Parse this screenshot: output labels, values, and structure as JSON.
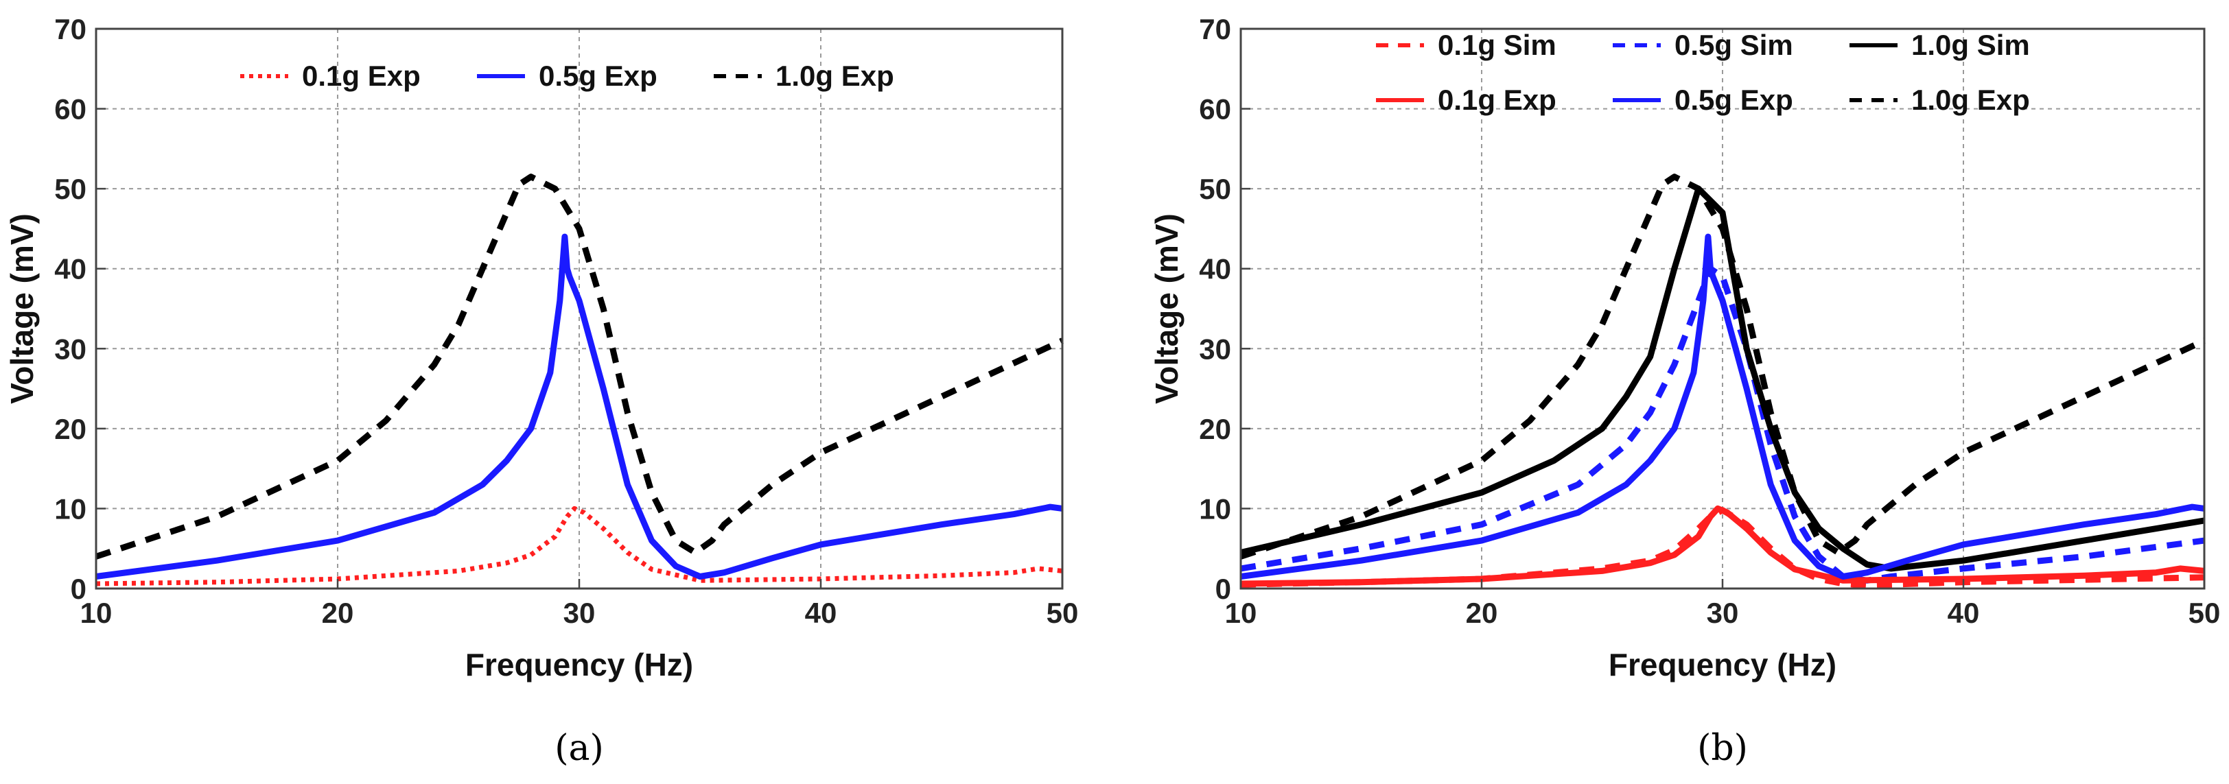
{
  "chart_data": [
    {
      "type": "line",
      "caption": "(a)",
      "xlabel": "Frequency (Hz)",
      "ylabel": "Voltage (mV)",
      "xlim": [
        10,
        50
      ],
      "ylim": [
        0,
        70
      ],
      "xticks": [
        "10",
        "20",
        "30",
        "40",
        "50"
      ],
      "yticks": [
        "0",
        "10",
        "20",
        "30",
        "40",
        "50",
        "60",
        "70"
      ],
      "grid": true,
      "legend_position": "top",
      "series": [
        {
          "name": "0.1g Exp",
          "color": "#ff2020",
          "style": "dotted",
          "x": [
            10,
            15,
            20,
            25,
            27,
            28,
            29,
            29.5,
            29.8,
            30.2,
            31,
            32,
            33,
            35,
            40,
            45,
            48,
            49,
            50
          ],
          "y": [
            0.6,
            0.8,
            1.2,
            2.2,
            3.2,
            4.2,
            6.5,
            9,
            10,
            9.5,
            7.5,
            4.5,
            2.4,
            1.0,
            1.2,
            1.6,
            2.0,
            2.5,
            2.2
          ]
        },
        {
          "name": "0.5g Exp",
          "color": "#1a1aff",
          "style": "solid",
          "x": [
            10,
            15,
            20,
            24,
            26,
            27,
            28,
            28.8,
            29.2,
            29.4,
            29.5,
            29.6,
            30,
            31,
            32,
            33,
            34,
            35,
            36,
            38,
            40,
            45,
            48,
            49.5,
            50
          ],
          "y": [
            1.5,
            3.5,
            6,
            9.5,
            13,
            16,
            20,
            27,
            36,
            44,
            40,
            39,
            36,
            25,
            13,
            6,
            2.8,
            1.5,
            2,
            3.8,
            5.5,
            8,
            9.3,
            10.2,
            10
          ]
        },
        {
          "name": "1.0g Exp",
          "color": "#000000",
          "style": "dashed",
          "x": [
            10,
            15,
            20,
            22,
            24,
            25,
            26,
            27,
            27.5,
            28,
            29,
            30,
            31,
            32,
            33,
            34,
            34.8,
            35.5,
            36,
            38,
            40,
            45,
            50
          ],
          "y": [
            4,
            9,
            16,
            21,
            28,
            33,
            40,
            47,
            50.5,
            51.5,
            50,
            45,
            35,
            22,
            12,
            6,
            4.5,
            6,
            8,
            13,
            17,
            24,
            31
          ]
        }
      ]
    },
    {
      "type": "line",
      "caption": "(b)",
      "xlabel": "Frequency (Hz)",
      "ylabel": "Voltage (mV)",
      "xlim": [
        10,
        50
      ],
      "ylim": [
        0,
        70
      ],
      "xticks": [
        "10",
        "20",
        "30",
        "40",
        "50"
      ],
      "yticks": [
        "0",
        "10",
        "20",
        "30",
        "40",
        "50",
        "60",
        "70"
      ],
      "grid": true,
      "legend_position": "top",
      "series": [
        {
          "name": "0.1g Sim",
          "color": "#ff2020",
          "style": "dashed",
          "x": [
            10,
            15,
            20,
            25,
            27,
            28,
            29,
            29.5,
            30,
            31,
            32,
            33,
            34,
            35,
            36,
            38,
            40,
            45,
            50
          ],
          "y": [
            0.5,
            0.8,
            1.2,
            2.5,
            3.5,
            4.8,
            7.5,
            9,
            9.8,
            8,
            5,
            2.5,
            1.2,
            0.6,
            0.4,
            0.6,
            0.8,
            1.1,
            1.4
          ]
        },
        {
          "name": "0.5g Sim",
          "color": "#1a1aff",
          "style": "dashed",
          "x": [
            10,
            15,
            20,
            24,
            26,
            27,
            28,
            29,
            29.5,
            30,
            31,
            32,
            33,
            34,
            35,
            36,
            37,
            40,
            45,
            50
          ],
          "y": [
            2.5,
            5,
            8,
            13,
            18,
            22,
            28,
            36,
            40,
            39,
            30,
            18,
            9,
            4,
            1.5,
            1,
            1.5,
            2.5,
            4,
            6
          ]
        },
        {
          "name": "1.0g Sim",
          "color": "#000000",
          "style": "solid",
          "x": [
            10,
            15,
            20,
            23,
            25,
            26,
            27,
            28,
            29,
            30,
            31,
            32,
            33,
            34,
            35,
            36,
            37,
            40,
            45,
            50
          ],
          "y": [
            4.5,
            8,
            12,
            16,
            20,
            24,
            29,
            40,
            50,
            47,
            30,
            20,
            12,
            7.5,
            5,
            3,
            2.5,
            3.5,
            6,
            8.5
          ]
        },
        {
          "name": "0.1g Exp",
          "color": "#ff2020",
          "style": "solid",
          "x": [
            10,
            15,
            20,
            25,
            27,
            28,
            29,
            29.5,
            29.8,
            30.2,
            31,
            32,
            33,
            35,
            40,
            45,
            48,
            49,
            50
          ],
          "y": [
            0.6,
            0.8,
            1.2,
            2.2,
            3.2,
            4.2,
            6.5,
            9,
            10,
            9.5,
            7.5,
            4.5,
            2.4,
            1.0,
            1.2,
            1.6,
            2.0,
            2.5,
            2.2
          ]
        },
        {
          "name": "0.5g Exp",
          "color": "#1a1aff",
          "style": "solid",
          "x": [
            10,
            15,
            20,
            24,
            26,
            27,
            28,
            28.8,
            29.2,
            29.4,
            29.5,
            29.6,
            30,
            31,
            32,
            33,
            34,
            35,
            36,
            38,
            40,
            45,
            48,
            49.5,
            50
          ],
          "y": [
            1.5,
            3.5,
            6,
            9.5,
            13,
            16,
            20,
            27,
            36,
            44,
            40,
            39,
            36,
            25,
            13,
            6,
            2.8,
            1.5,
            2,
            3.8,
            5.5,
            8,
            9.3,
            10.2,
            10
          ]
        },
        {
          "name": "1.0g Exp",
          "color": "#000000",
          "style": "dashed",
          "x": [
            10,
            15,
            20,
            22,
            24,
            25,
            26,
            27,
            27.5,
            28,
            29,
            30,
            31,
            32,
            33,
            34,
            34.8,
            35.5,
            36,
            38,
            40,
            45,
            50
          ],
          "y": [
            4,
            9,
            16,
            21,
            28,
            33,
            40,
            47,
            50.5,
            51.5,
            50,
            45,
            35,
            22,
            12,
            6,
            4.5,
            6,
            8,
            13,
            17,
            24,
            31
          ]
        }
      ]
    }
  ]
}
